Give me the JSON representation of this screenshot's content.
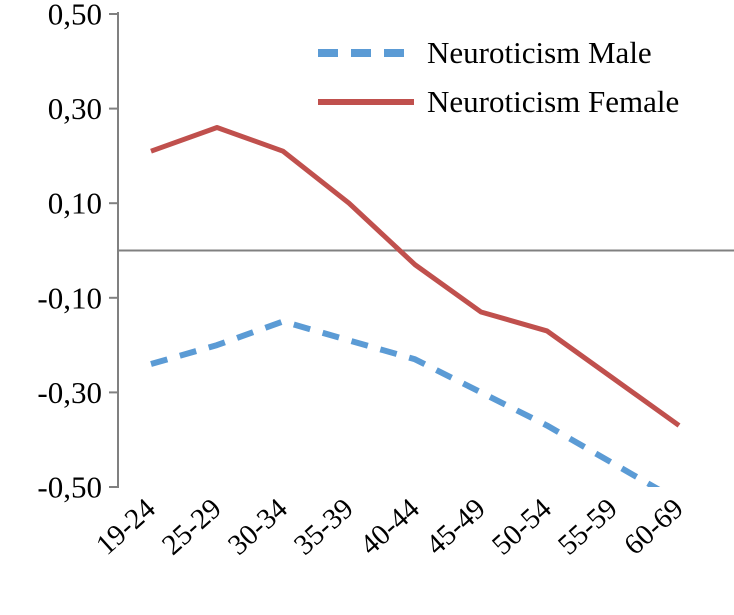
{
  "chart_data": {
    "type": "line",
    "title": "",
    "xlabel": "",
    "ylabel": "",
    "categories": [
      "19-24",
      "25-29",
      "30-34",
      "35-39",
      "40-44",
      "45-49",
      "50-54",
      "55-59",
      "60-69"
    ],
    "series": [
      {
        "name": "Neuroticism Male",
        "color": "#5B9BD5",
        "style": "dashed",
        "values": [
          -0.24,
          -0.2,
          -0.15,
          -0.19,
          -0.23,
          -0.3,
          -0.37,
          -0.45,
          -0.53
        ]
      },
      {
        "name": "Neuroticism Female",
        "color": "#C0504D",
        "style": "solid",
        "values": [
          0.21,
          0.26,
          0.21,
          0.1,
          -0.03,
          -0.13,
          -0.17,
          -0.27,
          -0.37
        ]
      }
    ],
    "ylim": [
      -0.5,
      0.5
    ],
    "yticks": [
      0.5,
      0.3,
      0.1,
      -0.1,
      -0.3,
      -0.5
    ],
    "ytick_labels": [
      "0,50",
      "0,30",
      "0,10",
      "-0,10",
      "-0,30",
      "-0,50"
    ],
    "axis_color": "#808080",
    "zero_line_color": "#808080",
    "grid": false,
    "legend_position": "top-center"
  }
}
